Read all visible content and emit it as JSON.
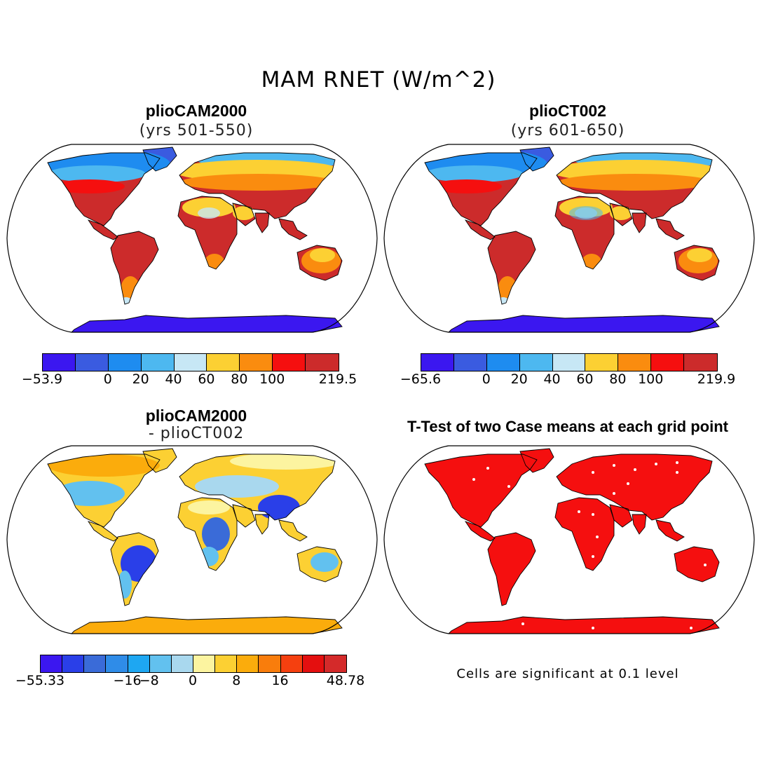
{
  "title": "MAM RNET (W/m^2)",
  "panels": [
    {
      "id": "pliocam2000",
      "title": "plioCAM2000",
      "subtitle": "(yrs 501-550)",
      "colorbar": {
        "colors": [
          "#3b17f0",
          "#3a5be0",
          "#1e8cf0",
          "#4db8f0",
          "#c7e7f5",
          "#fcd033",
          "#fa8c0f",
          "#f50f0f",
          "#cc2b2b"
        ],
        "labels": [
          "-53.9",
          "0",
          "20",
          "40",
          "60",
          "80",
          "100",
          "219.5"
        ]
      }
    },
    {
      "id": "pliocT002",
      "title": "plioCT002",
      "subtitle": "(yrs 601-650)",
      "colorbar": {
        "colors": [
          "#3b17f0",
          "#3a5be0",
          "#1e8cf0",
          "#4db8f0",
          "#c7e7f5",
          "#fcd033",
          "#fa8c0f",
          "#f50f0f",
          "#cc2b2b"
        ],
        "labels": [
          "-65.6",
          "0",
          "20",
          "40",
          "60",
          "80",
          "100",
          "219.9"
        ]
      }
    },
    {
      "id": "difference",
      "title": "plioCAM2000",
      "subtitle": "- plioCT002",
      "colorbar": {
        "colors": [
          "#3b17f0",
          "#2a3fe8",
          "#3a6bd8",
          "#2f8ce8",
          "#1ea7f2",
          "#62c1ef",
          "#a9d8ee",
          "#fcf4a0",
          "#fcd033",
          "#fbac0c",
          "#f97d0c",
          "#f5400f",
          "#e40f0f",
          "#d42a2a"
        ],
        "labels": [
          "-55.33",
          "-16",
          "-8",
          "0",
          "8",
          "16",
          "48.78"
        ]
      }
    },
    {
      "id": "ttest",
      "title": "T-Test of two Case means at each grid point",
      "note": "Cells are significant at 0.1 level"
    }
  ],
  "colors": {
    "ocean": "#ffffff",
    "outline": "#000000",
    "significant": "#f50f0f",
    "antarctica_cold": "#3b17f0",
    "antarctica_diff": "#fbac0c"
  }
}
